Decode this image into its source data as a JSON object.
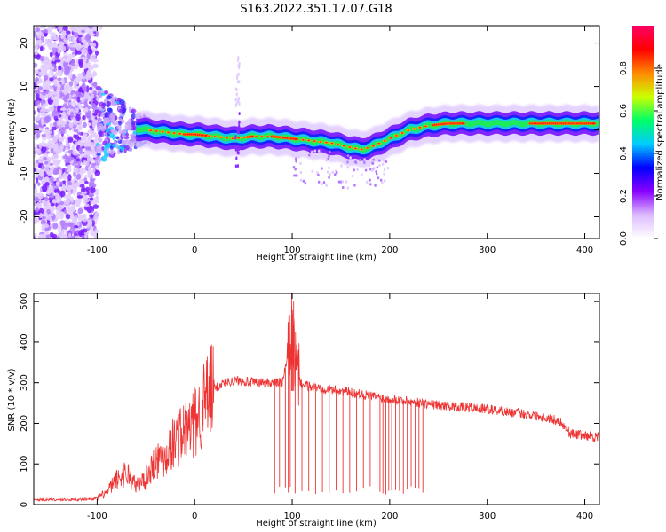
{
  "title": "S163.2022.351.17.07.G18",
  "colors": {
    "snr_line": "#ee3333",
    "frame": "#000000"
  },
  "chart_data": [
    {
      "type": "heatmap",
      "xlabel": "Height of straight line (km)",
      "ylabel": "Frequency (Hz)",
      "xlim": [
        -165,
        415
      ],
      "ylim": [
        -25,
        24
      ],
      "xticks": [
        -100,
        0,
        100,
        200,
        300,
        400
      ],
      "yticks": [
        -20,
        -10,
        0,
        10,
        20
      ],
      "ytick_labels": [
        "-20",
        "-10",
        "0",
        "10",
        "20"
      ],
      "colorbar": {
        "label": "Normalized spectral amplitude",
        "range": [
          0,
          1
        ],
        "ticks": [
          0.0,
          0.2,
          0.4,
          0.6,
          0.8
        ],
        "tick_labels": [
          "0.0",
          "0.2",
          "0.4",
          "0.6",
          "0.8"
        ],
        "colormap": [
          "#ffffff",
          "#ddbbff",
          "#8800ff",
          "#0000ff",
          "#00ccff",
          "#00ff66",
          "#ccff00",
          "#ff8800",
          "#ff0000",
          "#ff0066"
        ]
      },
      "ridge_frequency_hz": {
        "x": [
          -165,
          -100,
          -70,
          -50,
          -30,
          -10,
          0,
          20,
          40,
          60,
          80,
          100,
          120,
          140,
          160,
          170,
          180,
          200,
          220,
          240,
          260,
          300,
          350,
          400,
          415
        ],
        "y": [
          0,
          1,
          0.5,
          0,
          -0.5,
          -1,
          -1,
          -1.5,
          -2,
          -1.5,
          -1.5,
          -2,
          -2.5,
          -3,
          -4,
          -4.5,
          -4,
          -2,
          0,
          1,
          1.5,
          1.5,
          1.5,
          1.5,
          1.5
        ]
      },
      "noise_region_x": [
        -165,
        -100
      ]
    },
    {
      "type": "line",
      "xlabel": "Height of straight line (km)",
      "ylabel": "SNR (10 * v/v)",
      "xlim": [
        -165,
        415
      ],
      "ylim": [
        0,
        520
      ],
      "xticks": [
        -100,
        0,
        100,
        200,
        300,
        400
      ],
      "yticks": [
        0,
        100,
        200,
        300,
        400,
        500
      ],
      "series": [
        {
          "x": [
            -165,
            -120,
            -100,
            -90,
            -80,
            -70,
            -60,
            -50,
            -40,
            -30,
            -20,
            -10,
            0,
            10,
            20,
            30,
            40,
            50,
            60,
            70,
            80,
            90,
            95,
            100,
            105,
            110,
            120,
            150,
            200,
            250,
            300,
            350,
            375,
            385,
            400,
            415
          ],
          "y": [
            12,
            12,
            15,
            30,
            60,
            80,
            45,
            65,
            110,
            120,
            160,
            180,
            200,
            250,
            285,
            300,
            305,
            305,
            300,
            300,
            300,
            300,
            360,
            420,
            320,
            295,
            290,
            280,
            260,
            245,
            235,
            220,
            205,
            175,
            170,
            165
          ]
        }
      ],
      "dropouts_x": [
        82,
        87,
        93,
        96,
        98,
        103,
        110,
        117,
        124,
        131,
        138,
        145,
        152,
        159,
        166,
        173,
        180,
        187,
        190,
        193,
        196,
        199,
        202,
        206,
        210,
        214,
        218,
        222,
        226,
        230,
        234
      ]
    }
  ]
}
